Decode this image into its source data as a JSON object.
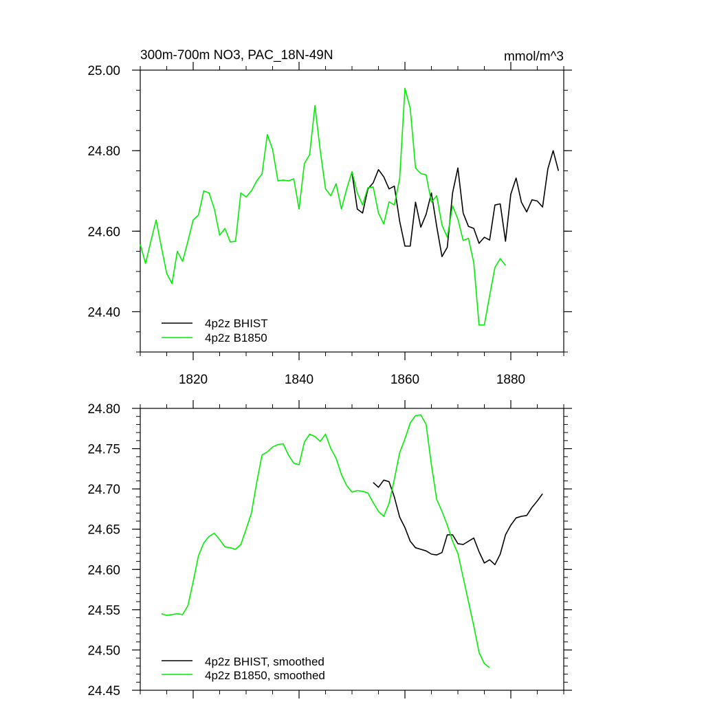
{
  "colors": {
    "bhist": "#000000",
    "b1850": "#00ee00",
    "axis": "#000000"
  },
  "chart_data": [
    {
      "type": "line",
      "title": "300m-700m NO3, PAC_18N-49N",
      "units": "mmol/m^3",
      "xlim": [
        1810,
        1890
      ],
      "ylim": [
        24.3,
        25.0
      ],
      "xticks": [
        1820,
        1840,
        1860,
        1880
      ],
      "xtick_labels": [
        "1820",
        "1840",
        "1860",
        "1880"
      ],
      "yticks": [
        24.4,
        24.6,
        24.8,
        25.0
      ],
      "ytick_labels": [
        "24.40",
        "24.60",
        "24.80",
        "25.00"
      ],
      "legend_position": "bottom-left",
      "series": [
        {
          "name": "4p2z BHIST",
          "color": "#000000",
          "x": [
            1850,
            1851,
            1852,
            1853,
            1854,
            1855,
            1856,
            1857,
            1858,
            1859,
            1860,
            1861,
            1862,
            1863,
            1864,
            1865,
            1866,
            1867,
            1868,
            1869,
            1870,
            1871,
            1872,
            1873,
            1874,
            1875,
            1876,
            1877,
            1878,
            1879,
            1880,
            1881,
            1882,
            1883,
            1884,
            1885,
            1886,
            1887,
            1888,
            1889
          ],
          "y": [
            24.745,
            24.655,
            24.645,
            24.705,
            24.72,
            24.753,
            24.735,
            24.705,
            24.712,
            24.625,
            24.563,
            24.563,
            24.672,
            24.61,
            24.642,
            24.695,
            24.612,
            24.537,
            24.56,
            24.695,
            24.757,
            24.645,
            24.612,
            24.607,
            24.57,
            24.585,
            24.578,
            24.665,
            24.668,
            24.575,
            24.692,
            24.732,
            24.672,
            24.648,
            24.678,
            24.675,
            24.66,
            24.755,
            24.8,
            24.75
          ]
        },
        {
          "name": "4p2z B1850",
          "color": "#00ee00",
          "x": [
            1810,
            1811,
            1812,
            1813,
            1814,
            1815,
            1816,
            1817,
            1818,
            1819,
            1820,
            1821,
            1822,
            1823,
            1824,
            1825,
            1826,
            1827,
            1828,
            1829,
            1830,
            1831,
            1832,
            1833,
            1834,
            1835,
            1836,
            1837,
            1838,
            1839,
            1840,
            1841,
            1842,
            1843,
            1844,
            1845,
            1846,
            1847,
            1848,
            1849,
            1850,
            1851,
            1852,
            1853,
            1854,
            1855,
            1856,
            1857,
            1858,
            1859,
            1860,
            1861,
            1862,
            1863,
            1864,
            1865,
            1866,
            1867,
            1868,
            1869,
            1870,
            1871,
            1872,
            1873,
            1874,
            1875,
            1876,
            1877,
            1878,
            1879
          ],
          "y": [
            24.567,
            24.52,
            24.575,
            24.628,
            24.56,
            24.495,
            24.47,
            24.55,
            24.525,
            24.575,
            24.628,
            24.64,
            24.7,
            24.695,
            24.655,
            24.59,
            24.607,
            24.573,
            24.575,
            24.695,
            24.685,
            24.7,
            24.725,
            24.742,
            24.84,
            24.803,
            24.725,
            24.727,
            24.725,
            24.73,
            24.655,
            24.768,
            24.79,
            24.912,
            24.8,
            24.705,
            24.688,
            24.718,
            24.655,
            24.705,
            24.748,
            24.695,
            24.665,
            24.708,
            24.71,
            24.645,
            24.618,
            24.673,
            24.665,
            24.73,
            24.955,
            24.905,
            24.757,
            24.743,
            24.74,
            24.672,
            24.688,
            24.615,
            24.585,
            24.663,
            24.63,
            24.577,
            24.582,
            24.522,
            24.367,
            24.367,
            24.44,
            24.51,
            24.532,
            24.515
          ]
        }
      ]
    },
    {
      "type": "line",
      "xlim": [
        1810,
        1890
      ],
      "ylim": [
        24.45,
        24.8
      ],
      "xticks": [
        1820,
        1840,
        1860,
        1880
      ],
      "yticks": [
        24.45,
        24.5,
        24.55,
        24.6,
        24.65,
        24.7,
        24.75,
        24.8
      ],
      "ytick_labels": [
        "24.45",
        "24.50",
        "24.55",
        "24.60",
        "24.65",
        "24.70",
        "24.75",
        "24.80"
      ],
      "legend_position": "bottom-left",
      "series": [
        {
          "name": "4p2z BHIST, smoothed",
          "color": "#000000",
          "x": [
            1854,
            1855,
            1856,
            1857,
            1858,
            1859,
            1860,
            1861,
            1862,
            1863,
            1864,
            1865,
            1866,
            1867,
            1868,
            1869,
            1870,
            1871,
            1872,
            1873,
            1874,
            1875,
            1876,
            1877,
            1878,
            1879,
            1880,
            1881,
            1882,
            1883,
            1884,
            1885,
            1886
          ],
          "y": [
            24.708,
            24.702,
            24.711,
            24.709,
            24.69,
            24.665,
            24.652,
            24.635,
            24.627,
            24.625,
            24.623,
            24.619,
            24.618,
            24.621,
            24.643,
            24.643,
            24.632,
            24.631,
            24.635,
            24.639,
            24.622,
            24.608,
            24.612,
            24.606,
            24.619,
            24.643,
            24.655,
            24.664,
            24.666,
            24.667,
            24.677,
            24.685,
            24.694
          ]
        },
        {
          "name": "4p2z B1850, smoothed",
          "color": "#00ee00",
          "x": [
            1814,
            1815,
            1816,
            1817,
            1818,
            1819,
            1820,
            1821,
            1822,
            1823,
            1824,
            1825,
            1826,
            1827,
            1828,
            1829,
            1830,
            1831,
            1832,
            1833,
            1834,
            1835,
            1836,
            1837,
            1838,
            1839,
            1840,
            1841,
            1842,
            1843,
            1844,
            1845,
            1846,
            1847,
            1848,
            1849,
            1850,
            1851,
            1852,
            1853,
            1854,
            1855,
            1856,
            1857,
            1858,
            1859,
            1860,
            1861,
            1862,
            1863,
            1864,
            1865,
            1866,
            1867,
            1868,
            1869,
            1870,
            1871,
            1872,
            1873,
            1874,
            1875,
            1876
          ],
          "y": [
            24.545,
            24.543,
            24.544,
            24.545,
            24.544,
            24.555,
            24.585,
            24.617,
            24.633,
            24.641,
            24.645,
            24.637,
            24.628,
            24.627,
            24.625,
            24.631,
            24.65,
            24.67,
            24.708,
            24.742,
            24.746,
            24.752,
            24.755,
            24.756,
            24.742,
            24.732,
            24.73,
            24.758,
            24.768,
            24.765,
            24.759,
            24.768,
            24.75,
            24.738,
            24.718,
            24.704,
            24.696,
            24.698,
            24.697,
            24.695,
            24.683,
            24.672,
            24.666,
            24.682,
            24.712,
            24.745,
            24.762,
            24.782,
            24.791,
            24.792,
            24.78,
            24.73,
            24.687,
            24.672,
            24.655,
            24.635,
            24.62,
            24.59,
            24.56,
            24.53,
            24.497,
            24.483,
            24.478
          ]
        }
      ]
    }
  ]
}
